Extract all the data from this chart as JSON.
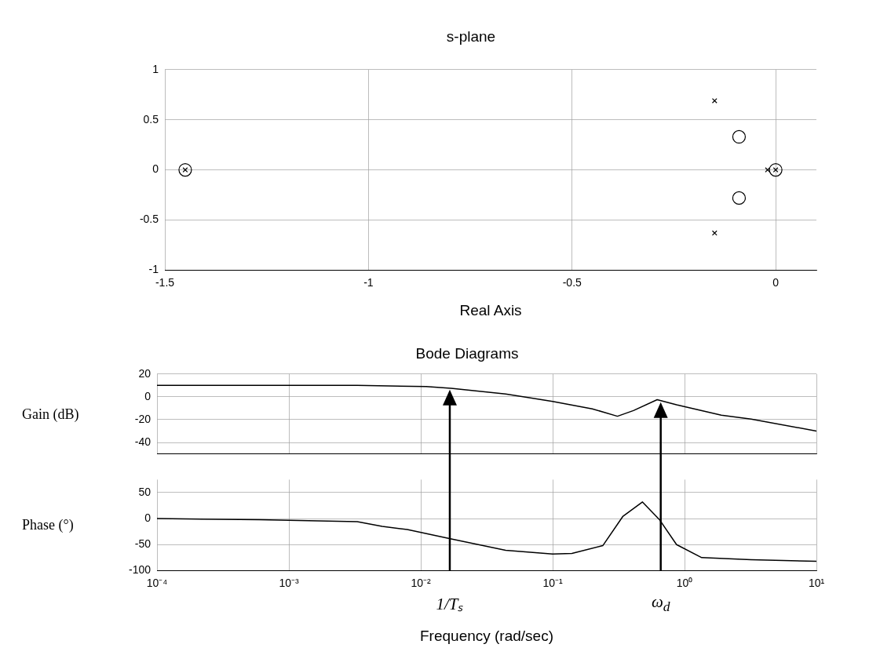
{
  "chart_data": [
    {
      "type": "scatter",
      "title": "s-plane",
      "xlabel": "Real Axis",
      "xlim": [
        -1.5,
        0.1
      ],
      "xticks": [
        -1.5,
        -1,
        -0.5,
        0
      ],
      "ylim": [
        -1,
        1
      ],
      "yticks": [
        -1,
        -0.5,
        0,
        0.5,
        1
      ],
      "grid": true,
      "series": [
        {
          "color": "#000000",
          "marker": "circle",
          "x": [
            -1.45,
            -0.09,
            -0.09,
            0
          ],
          "values": [
            0,
            0.33,
            -0.28,
            0
          ]
        },
        {
          "color": "#000000",
          "marker": "cross",
          "x": [
            -1.45,
            -0.15,
            -0.15,
            -0.02,
            0
          ],
          "values": [
            0,
            0.69,
            -0.63,
            0,
            0
          ]
        }
      ]
    },
    {
      "type": "line",
      "title": "Bode Diagrams",
      "ylabel": "Gain (dB)",
      "log": "x",
      "xlim": [
        0.0001,
        10
      ],
      "xticks": [
        0.0001,
        0.001,
        0.01,
        0.1,
        1,
        10
      ],
      "tick_labels": "y",
      "ylim": [
        -50,
        20
      ],
      "yticks": [
        -40,
        -20,
        0,
        20
      ],
      "grid": true,
      "marker": "none",
      "series": [
        {
          "color": "#000000",
          "x": [
            0.0001,
            0.001,
            0.0033,
            0.011,
            0.017,
            0.044,
            0.1,
            0.2,
            0.31,
            0.41,
            0.62,
            0.87,
            1.9,
            3.2,
            10
          ],
          "values": [
            10,
            10,
            10,
            9,
            7.5,
            2.5,
            -4,
            -10.5,
            -17,
            -12,
            -2.5,
            -7,
            -16,
            -19.5,
            -30
          ]
        }
      ]
    },
    {
      "type": "line",
      "xlabel": "Frequency (rad/sec)",
      "ylabel": "Phase (°)",
      "log": "x",
      "xlim": [
        0.0001,
        10
      ],
      "xticks": [
        {
          "value": 0.0001,
          "label": "10⁻⁴"
        },
        {
          "value": 0.001,
          "label": "10⁻³"
        },
        {
          "value": 0.01,
          "label": "10⁻²"
        },
        {
          "value": 0.1,
          "label": "10⁻¹"
        },
        {
          "value": 1,
          "label": "10⁰"
        },
        {
          "value": 10,
          "label": "10¹"
        }
      ],
      "ylim": [
        -100,
        75
      ],
      "yticks": [
        -100,
        -50,
        0,
        50
      ],
      "grid": true,
      "marker": "none",
      "line_style": "solid",
      "series": [
        {
          "color": "#000000",
          "x": [
            0.0001,
            0.0006,
            0.0033,
            0.0051,
            0.0079,
            0.017,
            0.044,
            0.1,
            0.14,
            0.24,
            0.34,
            0.48,
            0.65,
            0.87,
            1.35,
            3.2,
            10
          ],
          "values": [
            0,
            -2,
            -6,
            -15,
            -21,
            -39,
            -61,
            -68,
            -67,
            -52,
            4,
            32,
            -3,
            -50,
            -75,
            -79,
            -82
          ]
        }
      ],
      "ref_lines": [
        {
          "axis": "x",
          "value": 0.0166,
          "label": "1/Tₛ",
          "color": "#000000"
        },
        {
          "axis": "x",
          "value": 0.66,
          "label": "ω$_{d}$",
          "color": "#000000"
        }
      ]
    }
  ]
}
